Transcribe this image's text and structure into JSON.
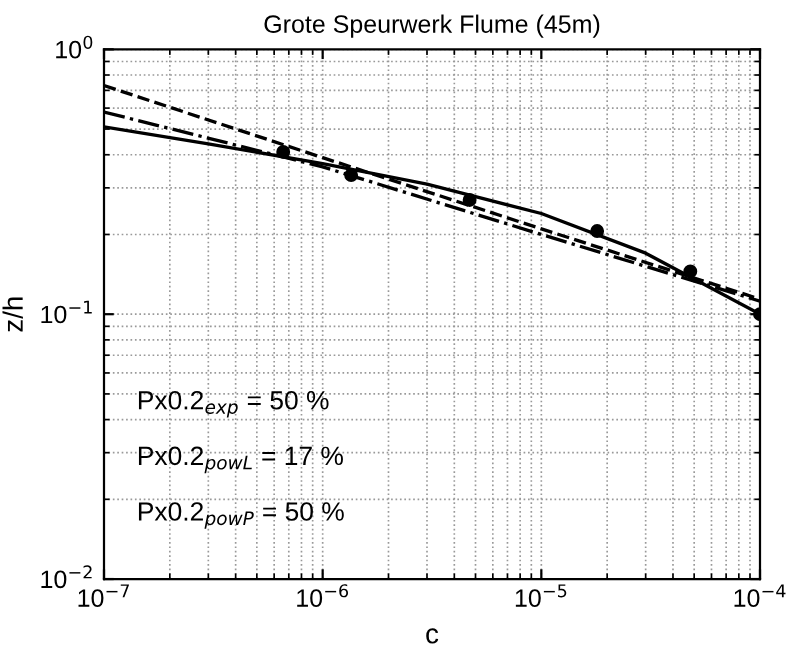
{
  "chart_data": {
    "type": "line",
    "title": "Grote Speurwerk Flume (45m)",
    "xlabel": "c",
    "ylabel": "z/h",
    "log": "xy",
    "grid": true,
    "xlim": [
      1e-07,
      0.0001
    ],
    "ylim": [
      0.01,
      1
    ],
    "xticks": [
      {
        "value": 1e-07,
        "label": "10$^{−7}$"
      },
      {
        "value": 1e-06,
        "label": "10$^{−6}$"
      },
      {
        "value": 1e-05,
        "label": "10$^{−5}$"
      },
      {
        "value": 0.0001,
        "label": "10$^{−4}$"
      }
    ],
    "yticks": [
      {
        "value": 0.01,
        "label": "10$^{−2}$"
      },
      {
        "value": 0.1,
        "label": "10$^{−1}$"
      },
      {
        "value": 1,
        "label": "10$^{0}$"
      }
    ],
    "series": [
      {
        "type": "scatter",
        "color": "#000000",
        "marker": "circle",
        "x": [
          6.6e-07,
          1.35e-06,
          4.7e-06,
          1.8e-05,
          4.8e-05,
          0.0001
        ],
        "values": [
          0.41,
          0.335,
          0.27,
          0.206,
          0.145,
          0.1
        ]
      },
      {
        "color": "#000000",
        "line_style": "solid",
        "x": [
          1e-07,
          3e-07,
          1e-06,
          3e-06,
          1e-05,
          3e-05,
          0.0001
        ],
        "values": [
          0.51,
          0.44,
          0.37,
          0.31,
          0.24,
          0.17,
          0.1
        ]
      },
      {
        "color": "#000000",
        "line_style": "dashed",
        "x": [
          1e-07,
          1e-06,
          1e-05,
          0.0001
        ],
        "values": [
          0.73,
          0.39,
          0.21,
          0.114
        ]
      },
      {
        "color": "#000000",
        "line_style": "dashdot",
        "x": [
          1e-07,
          1e-06,
          1e-05,
          0.0001
        ],
        "values": [
          0.58,
          0.36,
          0.2,
          0.112
        ]
      }
    ],
    "annotations": [
      "Px0.2$_{exp}$ = 50 %",
      "Px0.2$_{powL}$ = 17 %",
      "Px0.2$_{powP}$ = 50 %"
    ]
  }
}
